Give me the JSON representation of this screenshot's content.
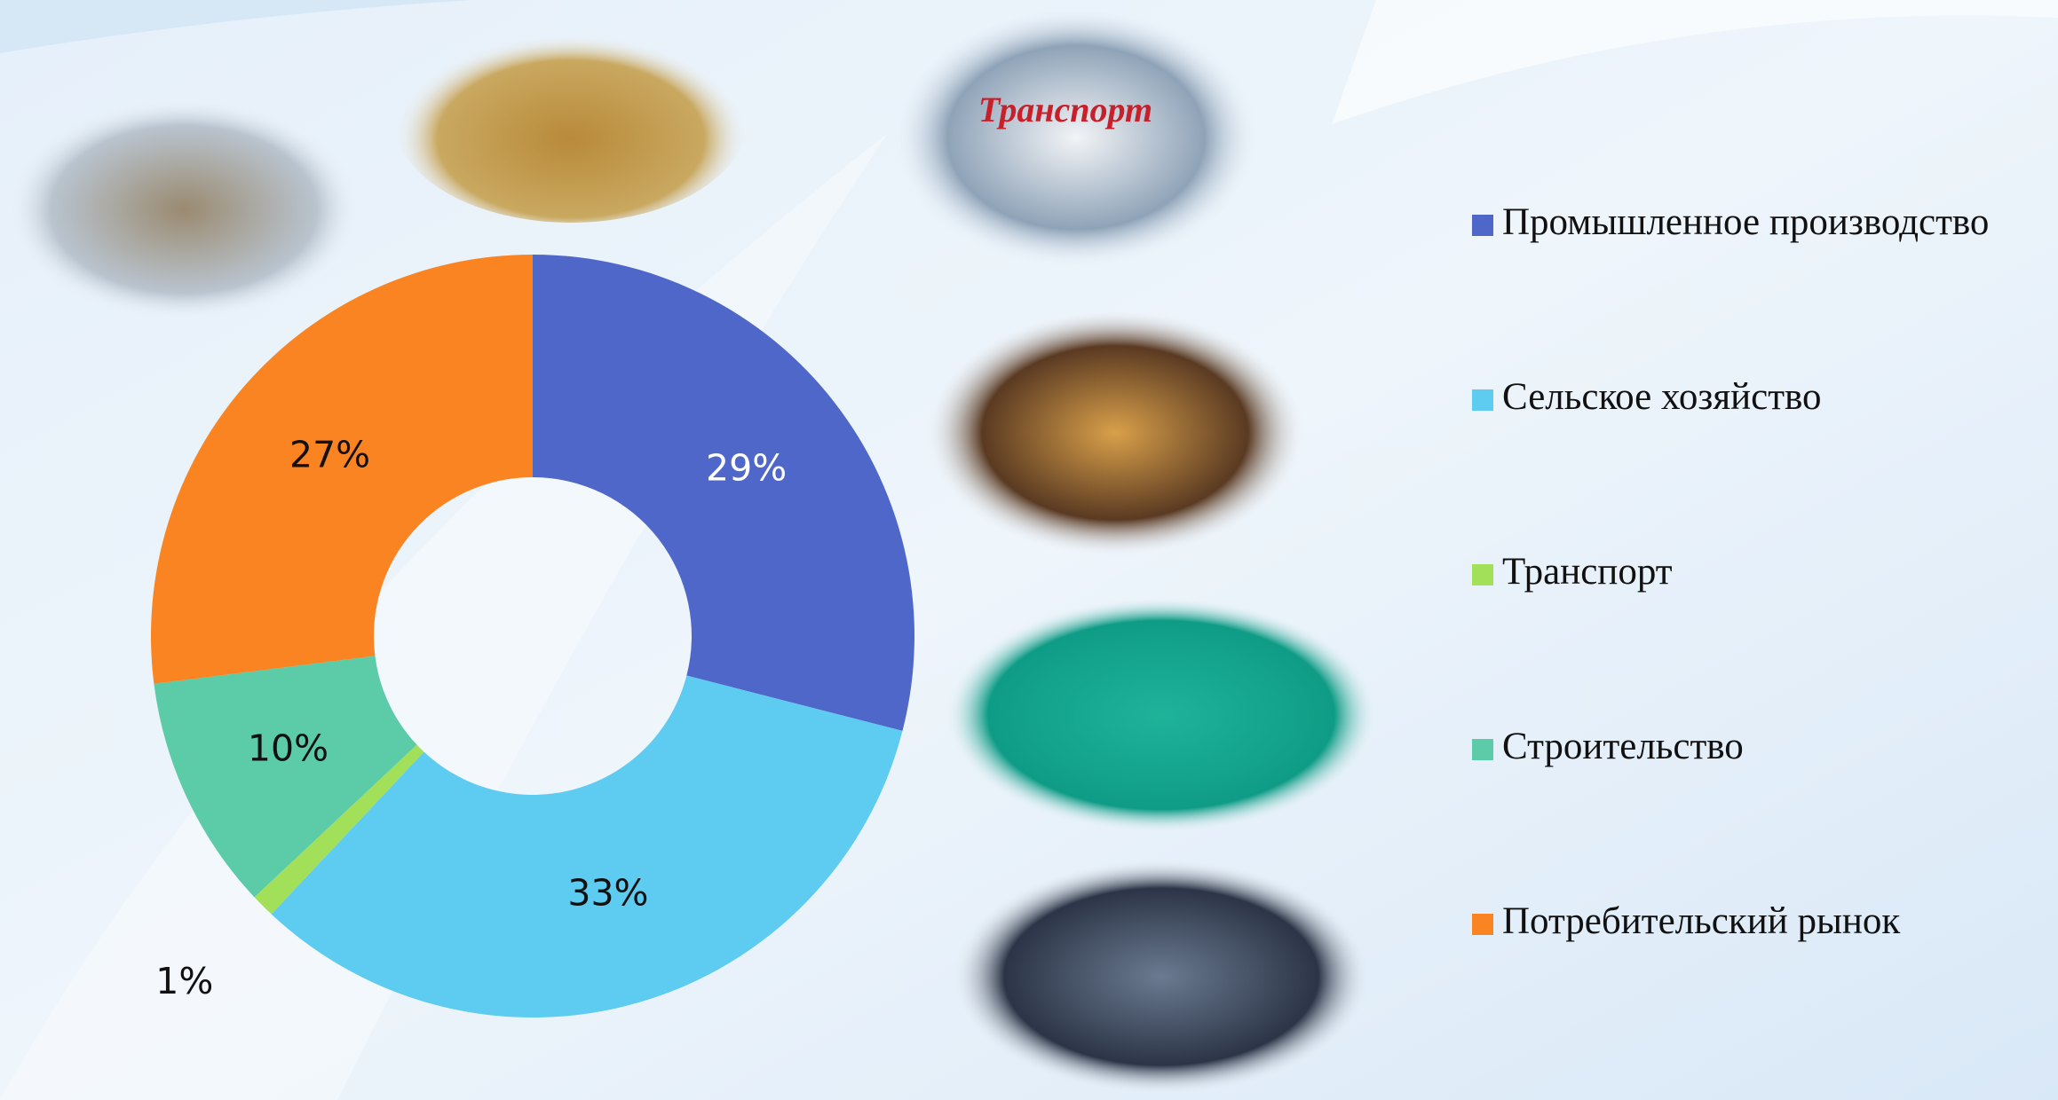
{
  "chart_data": {
    "type": "donut",
    "categories": [
      "Промышленное производство",
      "Сельское хозяйство",
      "Транспорт",
      "Строительство",
      "Потребительский рынок"
    ],
    "values": [
      29,
      33,
      1,
      10,
      27
    ],
    "value_labels": [
      "29%",
      "33%",
      "1%",
      "10%",
      "27%"
    ],
    "colors": [
      "#4f67c9",
      "#5ecbf0",
      "#a3e05a",
      "#5ccba8",
      "#fb8422"
    ],
    "legend": "right"
  },
  "image_texts": [
    "Транспорт"
  ]
}
